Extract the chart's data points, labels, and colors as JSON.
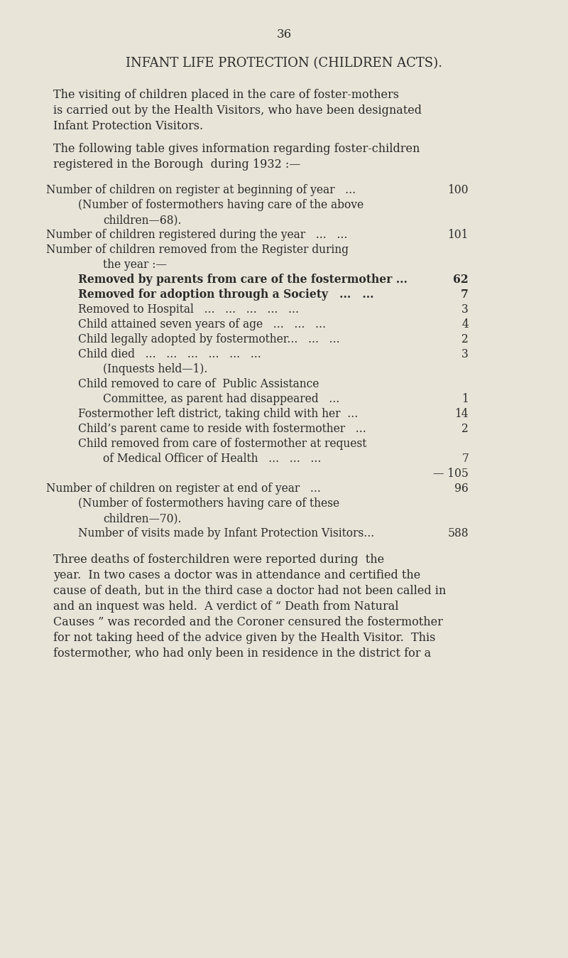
{
  "page_number": "36",
  "title": "INFANT LIFE PROTECTION (CHILDREN ACTS).",
  "bg_color": "#e8e4d8",
  "text_color": "#2a2a2a",
  "para1": "The visiting of children placed in the care of foster-mothers is carried out by the Health Visitors, who have been designated Infant Protection Visitors.",
  "para2": "The following table gives information regarding foster-children registered in the Borough  during 1932 :—",
  "rows": [
    {
      "indent": 0,
      "text": "Number of children on register at beginning of year   ...",
      "value": "100",
      "bold": false
    },
    {
      "indent": 1,
      "text": "(Number of fostermothers having care of the above",
      "value": "",
      "bold": false
    },
    {
      "indent": 2,
      "text": "children—68).",
      "value": "",
      "bold": false
    },
    {
      "indent": 0,
      "text": "Number of children registered during the year   ...   ...",
      "value": "101",
      "bold": false
    },
    {
      "indent": 0,
      "text": "Number of children removed from the Register during",
      "value": "",
      "bold": false
    },
    {
      "indent": 2,
      "text": "the year :—",
      "value": "",
      "bold": false
    },
    {
      "indent": 1,
      "text": "Removed by parents from care of the fostermother ...",
      "value": "62",
      "bold": true
    },
    {
      "indent": 1,
      "text": "Removed for adoption through a Society   ...   ...",
      "value": "7",
      "bold": true
    },
    {
      "indent": 1,
      "text": "Removed to Hospital   ...   ...   ...   ...   ...",
      "value": "3",
      "bold": false
    },
    {
      "indent": 1,
      "text": "Child attained seven years of age   ...   ...   ...",
      "value": "4",
      "bold": false
    },
    {
      "indent": 1,
      "text": "Child legally adopted by fostermother...   ...   ...",
      "value": "2",
      "bold": false
    },
    {
      "indent": 1,
      "text": "Child died   ...   ...   ...   ...   ...   ...",
      "value": "3",
      "bold": false
    },
    {
      "indent": 2,
      "text": "(Inquests held—1).",
      "value": "",
      "bold": false
    },
    {
      "indent": 1,
      "text": "Child removed to care of  Public Assistance",
      "value": "",
      "bold": false
    },
    {
      "indent": 2,
      "text": "Committee, as parent had disappeared   ...",
      "value": "1",
      "bold": false
    },
    {
      "indent": 1,
      "text": "Fostermother left district, taking child with her  ...",
      "value": "14",
      "bold": false
    },
    {
      "indent": 1,
      "text": "Child’s parent came to reside with fostermother   ...",
      "value": "2",
      "bold": false
    },
    {
      "indent": 1,
      "text": "Child removed from care of fostermother at request",
      "value": "",
      "bold": false
    },
    {
      "indent": 2,
      "text": "of Medical Officer of Health   ...   ...   ...",
      "value": "7",
      "bold": false
    },
    {
      "indent": 0,
      "text": "",
      "value": "— 105",
      "bold": false
    },
    {
      "indent": 0,
      "text": "Number of children on register at end of year   ...",
      "value": "96",
      "bold": false
    },
    {
      "indent": 1,
      "text": "(Number of fostermothers having care of these",
      "value": "",
      "bold": false
    },
    {
      "indent": 2,
      "text": "children—70).",
      "value": "",
      "bold": false
    },
    {
      "indent": 1,
      "text": "Number of visits made by Infant Protection Visitors...",
      "value": "588",
      "bold": false
    }
  ],
  "para3": "Three deaths of fosterchildren were reported during the year.  In two cases a doctor was in attendance and certified the cause of death, but in the third case a doctor had not been called in and an inquest was held.  A verdict of “ Death from Natural Causes ” was recorded and the Coroner censured the fostermother for not taking heed of the advice given by the Health Visitor.  This fostermother, who had only been in residence in the district for a"
}
